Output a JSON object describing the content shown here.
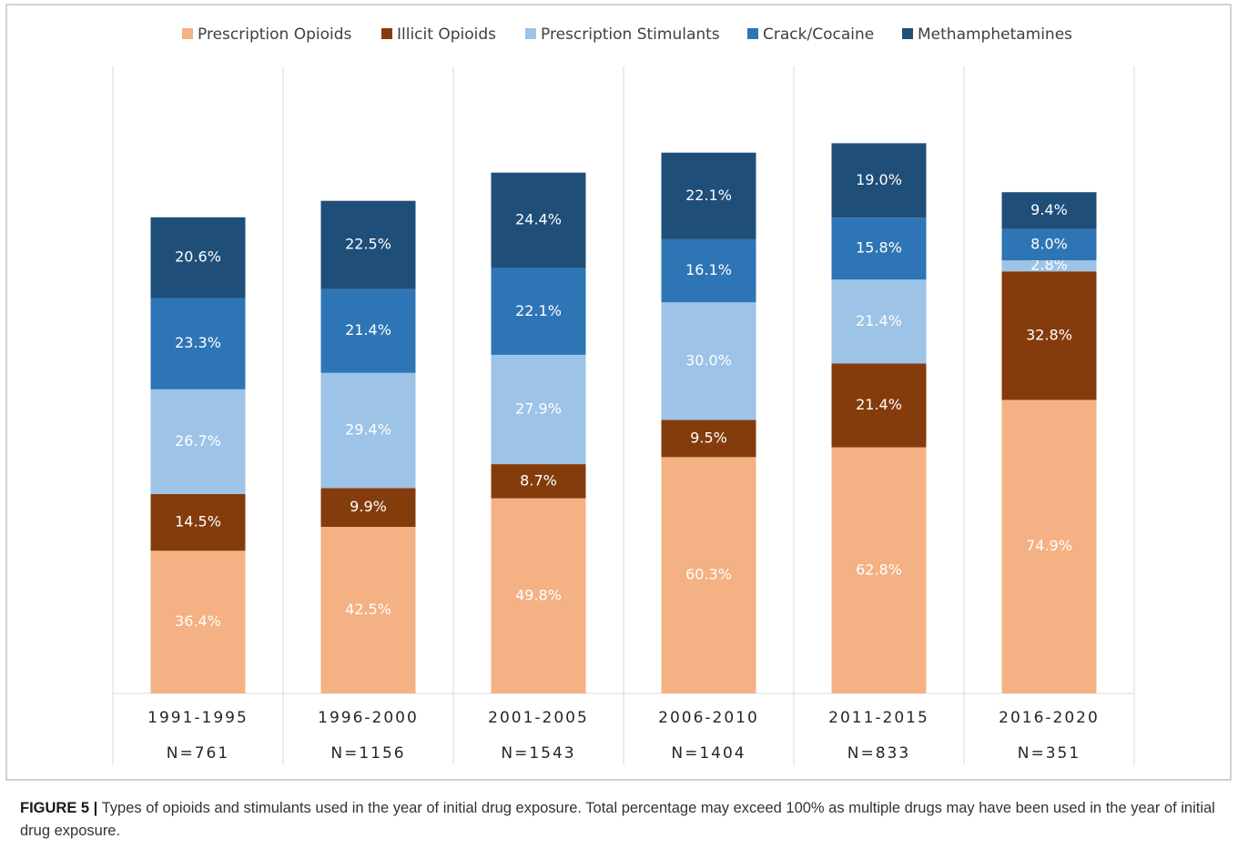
{
  "chart_data": {
    "type": "stacked_bar",
    "categories": [
      "1991-1995",
      "1996-2000",
      "2001-2005",
      "2006-2010",
      "2011-2015",
      "2016-2020"
    ],
    "sample_sizes": [
      "N=761",
      "N=1156",
      "N=1543",
      "N=1404",
      "N=833",
      "N=351"
    ],
    "ylim": [
      0,
      160
    ],
    "series": [
      {
        "name": "Prescription Opioids",
        "color": "#f4b183",
        "values": [
          36.4,
          42.5,
          49.8,
          60.3,
          62.8,
          74.9
        ],
        "value_labels": [
          "36.4%",
          "42.5%",
          "49.8%",
          "60.3%",
          "62.8%",
          "74.9%"
        ]
      },
      {
        "name": "Illicit Opioids",
        "color": "#843c0c",
        "values": [
          14.5,
          9.9,
          8.7,
          9.5,
          21.4,
          32.8
        ],
        "value_labels": [
          "14.5%",
          "9.9%",
          "8.7%",
          "9.5%",
          "21.4%",
          "32.8%"
        ]
      },
      {
        "name": "Prescription Stimulants",
        "color": "#9dc3e6",
        "values": [
          26.7,
          29.4,
          27.9,
          30.0,
          21.4,
          2.8
        ],
        "value_labels": [
          "26.7%",
          "29.4%",
          "27.9%",
          "30.0%",
          "21.4%",
          "2.8%"
        ]
      },
      {
        "name": "Crack/Cocaine",
        "color": "#2e75b6",
        "values": [
          23.3,
          21.4,
          22.1,
          16.1,
          15.8,
          8.0
        ],
        "value_labels": [
          "23.3%",
          "21.4%",
          "22.1%",
          "16.1%",
          "15.8%",
          "8.0%"
        ]
      },
      {
        "name": "Methamphetamines",
        "color": "#1f4e79",
        "values": [
          20.6,
          22.5,
          24.4,
          22.1,
          19.0,
          9.4
        ],
        "value_labels": [
          "20.6%",
          "22.5%",
          "24.4%",
          "22.1%",
          "19.0%",
          "9.4%"
        ]
      }
    ]
  },
  "caption": {
    "label": "FIGURE 5 |",
    "text": "Types of opioids and stimulants used in the year of initial drug exposure. Total percentage may exceed 100% as multiple drugs may have been used in the year of initial drug exposure."
  }
}
